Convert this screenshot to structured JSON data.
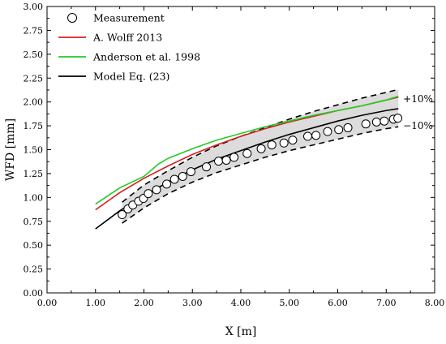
{
  "chart_data": {
    "type": "line",
    "xlabel": "X [m]",
    "ylabel": "WFD [mm]",
    "xlim": [
      0,
      8
    ],
    "ylim": [
      0,
      3
    ],
    "x_ticks": [
      "0.00",
      "1.00",
      "2.00",
      "3.00",
      "4.00",
      "5.00",
      "6.00",
      "7.00",
      "8.00"
    ],
    "y_ticks": [
      "0.00",
      "0.25",
      "0.50",
      "0.75",
      "1.00",
      "1.25",
      "1.50",
      "1.75",
      "2.00",
      "2.25",
      "2.50",
      "2.75",
      "3.00"
    ],
    "grid": false,
    "legend_placement": "top-left",
    "series": [
      {
        "name": "Measurement",
        "kind": "scatter",
        "marker": "open-circle",
        "color": "#000000",
        "x": [
          1.55,
          1.67,
          1.77,
          1.89,
          1.99,
          2.09,
          2.26,
          2.47,
          2.63,
          2.8,
          2.97,
          3.29,
          3.54,
          3.7,
          3.86,
          4.13,
          4.42,
          4.64,
          4.89,
          5.07,
          5.38,
          5.55,
          5.79,
          6.02,
          6.21,
          6.58,
          6.8,
          6.96,
          7.15,
          7.24
        ],
        "y": [
          0.82,
          0.88,
          0.92,
          0.96,
          0.99,
          1.04,
          1.08,
          1.14,
          1.19,
          1.22,
          1.27,
          1.32,
          1.38,
          1.39,
          1.42,
          1.46,
          1.51,
          1.55,
          1.57,
          1.6,
          1.64,
          1.65,
          1.69,
          1.71,
          1.73,
          1.77,
          1.79,
          1.8,
          1.82,
          1.83
        ]
      },
      {
        "name": "A. Wolff 2013",
        "kind": "line",
        "color": "#d62020",
        "x": [
          1.0,
          1.5,
          2.0,
          2.5,
          3.0,
          3.5,
          4.0,
          4.5,
          5.0,
          5.5,
          6.0,
          6.5,
          7.0,
          7.25
        ],
        "y": [
          0.87,
          1.05,
          1.2,
          1.33,
          1.45,
          1.55,
          1.64,
          1.72,
          1.79,
          1.85,
          1.91,
          1.96,
          2.02,
          2.05
        ]
      },
      {
        "name": "Anderson et al. 1998",
        "kind": "line",
        "color": "#22cc22",
        "x": [
          1.0,
          1.5,
          2.0,
          2.3,
          2.5,
          3.0,
          3.5,
          4.0,
          4.5,
          5.0,
          5.5,
          6.0,
          6.5,
          7.0,
          7.25
        ],
        "y": [
          0.93,
          1.1,
          1.22,
          1.35,
          1.41,
          1.51,
          1.6,
          1.67,
          1.74,
          1.8,
          1.86,
          1.91,
          1.96,
          2.02,
          2.06
        ]
      },
      {
        "name": "Model Eq. (23)",
        "kind": "line",
        "color": "#000000",
        "x": [
          1.0,
          1.5,
          2.0,
          2.5,
          3.0,
          3.5,
          4.0,
          4.5,
          5.0,
          5.5,
          6.0,
          6.5,
          7.0,
          7.25
        ],
        "y": [
          0.67,
          0.86,
          1.02,
          1.16,
          1.29,
          1.4,
          1.49,
          1.58,
          1.66,
          1.73,
          1.8,
          1.86,
          1.91,
          1.93
        ]
      },
      {
        "kind": "dashed",
        "color": "#000000",
        "x": [
          1.55,
          2.0,
          2.5,
          3.0,
          3.5,
          4.0,
          4.5,
          5.0,
          5.5,
          6.0,
          6.5,
          7.0,
          7.25
        ],
        "y": [
          0.95,
          1.13,
          1.28,
          1.42,
          1.54,
          1.64,
          1.73,
          1.82,
          1.9,
          1.97,
          2.04,
          2.1,
          2.13
        ]
      },
      {
        "kind": "dashed",
        "color": "#000000",
        "x": [
          1.55,
          2.0,
          2.5,
          3.0,
          3.5,
          4.0,
          4.5,
          5.0,
          5.5,
          6.0,
          6.5,
          7.0,
          7.25
        ],
        "y": [
          0.73,
          0.89,
          1.04,
          1.16,
          1.26,
          1.34,
          1.42,
          1.49,
          1.55,
          1.61,
          1.67,
          1.72,
          1.74
        ]
      }
    ],
    "band": {
      "fill": "#dcdcdc",
      "x": [
        1.55,
        2.0,
        2.5,
        3.0,
        3.5,
        4.0,
        4.5,
        5.0,
        5.5,
        6.0,
        6.5,
        7.0,
        7.25
      ],
      "upper": [
        0.95,
        1.13,
        1.28,
        1.42,
        1.54,
        1.64,
        1.73,
        1.82,
        1.9,
        1.97,
        2.04,
        2.1,
        2.13
      ],
      "lower": [
        0.73,
        0.89,
        1.04,
        1.16,
        1.26,
        1.34,
        1.42,
        1.49,
        1.55,
        1.61,
        1.67,
        1.72,
        1.74
      ]
    },
    "annotations": [
      {
        "text": "+10%",
        "x": 7.3,
        "y": 2.03
      },
      {
        "text": "−10%",
        "x": 7.3,
        "y": 1.75
      }
    ]
  }
}
